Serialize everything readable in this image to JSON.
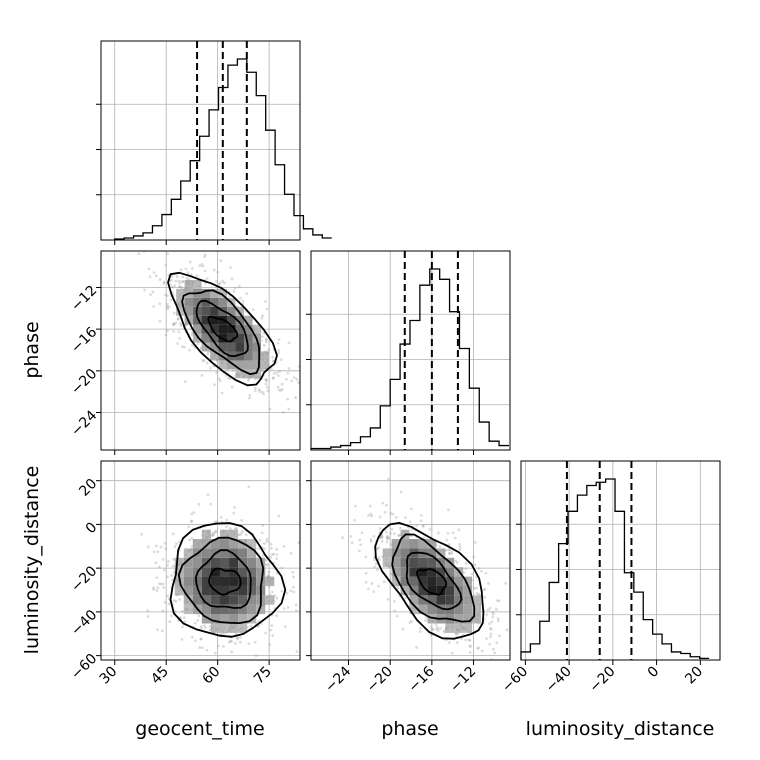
{
  "chart_data": {
    "type": "corner",
    "parameters": [
      "geocent_time",
      "phase",
      "luminosity_distance"
    ],
    "ranges": {
      "geocent_time": [
        26,
        84
      ],
      "phase": [
        -27.6,
        -8.5
      ],
      "luminosity_distance": [
        -62,
        29
      ]
    },
    "ticks": {
      "geocent_time": [
        30,
        45,
        60,
        75
      ],
      "phase": [
        -24,
        -20,
        -16,
        -12
      ],
      "luminosity_distance": [
        -60,
        -40,
        -20,
        0,
        20
      ]
    },
    "quantiles": {
      "geocent_time": [
        54,
        61.5,
        68.5
      ],
      "phase": [
        -18.6,
        -16,
        -13.5
      ],
      "luminosity_distance": [
        -41,
        -26,
        -11.5
      ]
    },
    "histograms": {
      "geocent_time": {
        "edges_start": 30,
        "bin_width": 2.75,
        "counts": [
          1,
          2,
          4,
          7,
          14,
          25,
          40,
          58,
          78,
          102,
          128,
          150,
          172,
          178,
          165,
          142,
          108,
          74,
          45,
          24,
          11,
          5,
          2
        ]
      },
      "phase": {
        "edges_start": -27.6,
        "bin_width": 0.95,
        "counts": [
          1,
          1,
          2,
          3,
          5,
          9,
          15,
          30,
          48,
          72,
          88,
          112,
          123,
          116,
          94,
          69,
          42,
          19,
          6,
          3
        ]
      },
      "luminosity_distance": {
        "edges_start": -62,
        "bin_width": 4.3,
        "counts": [
          5,
          10,
          24,
          48,
          72,
          92,
          102,
          108,
          110,
          112,
          92,
          54,
          42,
          25,
          16,
          10,
          5,
          4,
          2,
          1
        ]
      }
    },
    "joint": {
      "phase_vs_geocent_time": {
        "mean": [
          61.5,
          -16
        ],
        "sd": [
          7.5,
          2.6
        ],
        "corr": -0.65
      },
      "luminosity_distance_vs_geocent_time": {
        "mean": [
          62,
          -26
        ],
        "sd": [
          8,
          13
        ],
        "corr": -0.05
      },
      "luminosity_distance_vs_phase": {
        "mean": [
          -16,
          -26
        ],
        "sd": [
          2.6,
          13
        ],
        "corr": -0.55
      }
    },
    "contour_levels_sigma": [
      0.5,
      1.0,
      1.5,
      2.0
    ],
    "grid": true,
    "colors": {
      "ink": "#000000",
      "points": "#9a9a9a",
      "grid": "#b0b0b0"
    }
  }
}
